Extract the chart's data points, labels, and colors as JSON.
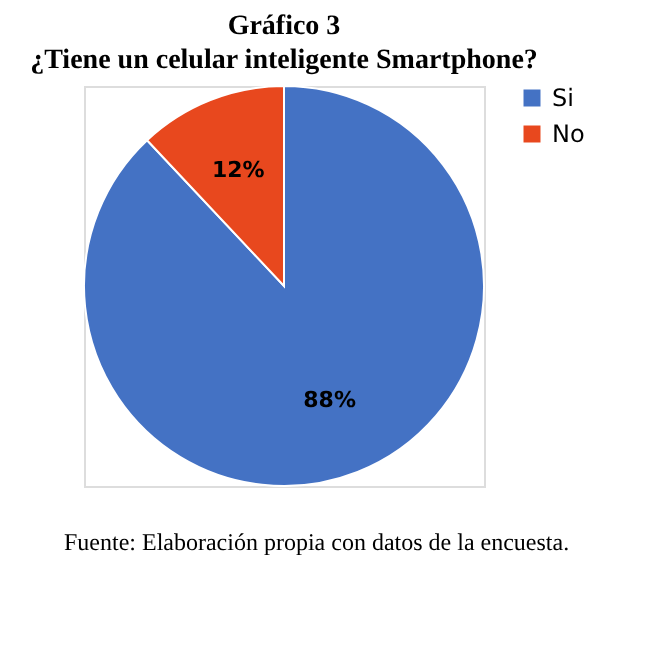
{
  "chart_data": {
    "type": "pie",
    "title": "Gráfico 3",
    "subtitle": "¿Tiene un celular inteligente Smartphone?",
    "categories": [
      "Si",
      "No"
    ],
    "values": [
      88,
      12
    ],
    "colors": [
      "#4472c4",
      "#e8481e"
    ],
    "value_labels": [
      "88%",
      "12%"
    ],
    "legend": "right",
    "annotations": [
      "Fuente: Elaboración propia con datos de la encuesta."
    ]
  }
}
